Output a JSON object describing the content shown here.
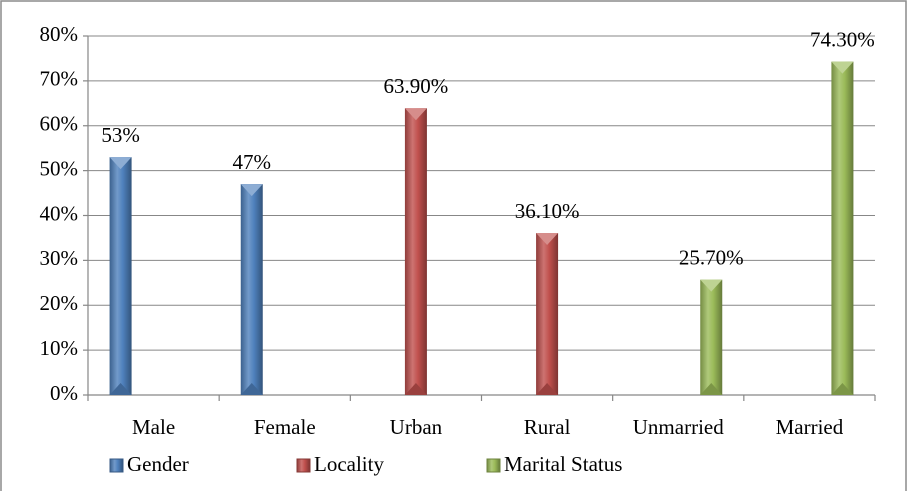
{
  "chart_data": {
    "type": "bar",
    "categories": [
      "Male",
      "Female",
      "Urban",
      "Rural",
      "Unmarried",
      "Married"
    ],
    "series": [
      {
        "name": "Gender",
        "color": "#4f81bd",
        "values": [
          53,
          47,
          null,
          null,
          null,
          null
        ],
        "value_labels": [
          "53%",
          "47%",
          null,
          null,
          null,
          null
        ]
      },
      {
        "name": "Locality",
        "color": "#c0504d",
        "values": [
          null,
          null,
          63.9,
          36.1,
          null,
          null
        ],
        "value_labels": [
          null,
          null,
          "63.90%",
          "36.10%",
          null,
          null
        ]
      },
      {
        "name": "Marital Status",
        "color": "#9bbb59",
        "values": [
          null,
          null,
          null,
          null,
          25.7,
          74.3
        ],
        "value_labels": [
          null,
          null,
          null,
          null,
          "25.70%",
          "74.30%"
        ]
      }
    ],
    "ylim": [
      0,
      80
    ],
    "yticks": [
      {
        "value": 0,
        "label": "0%"
      },
      {
        "value": 10,
        "label": "10%"
      },
      {
        "value": 20,
        "label": "20%"
      },
      {
        "value": 30,
        "label": "30%"
      },
      {
        "value": 40,
        "label": "40%"
      },
      {
        "value": 50,
        "label": "50%"
      },
      {
        "value": 60,
        "label": "60%"
      },
      {
        "value": 70,
        "label": "70%"
      },
      {
        "value": 80,
        "label": "80%"
      }
    ],
    "grid": true,
    "legend": "bottom"
  }
}
